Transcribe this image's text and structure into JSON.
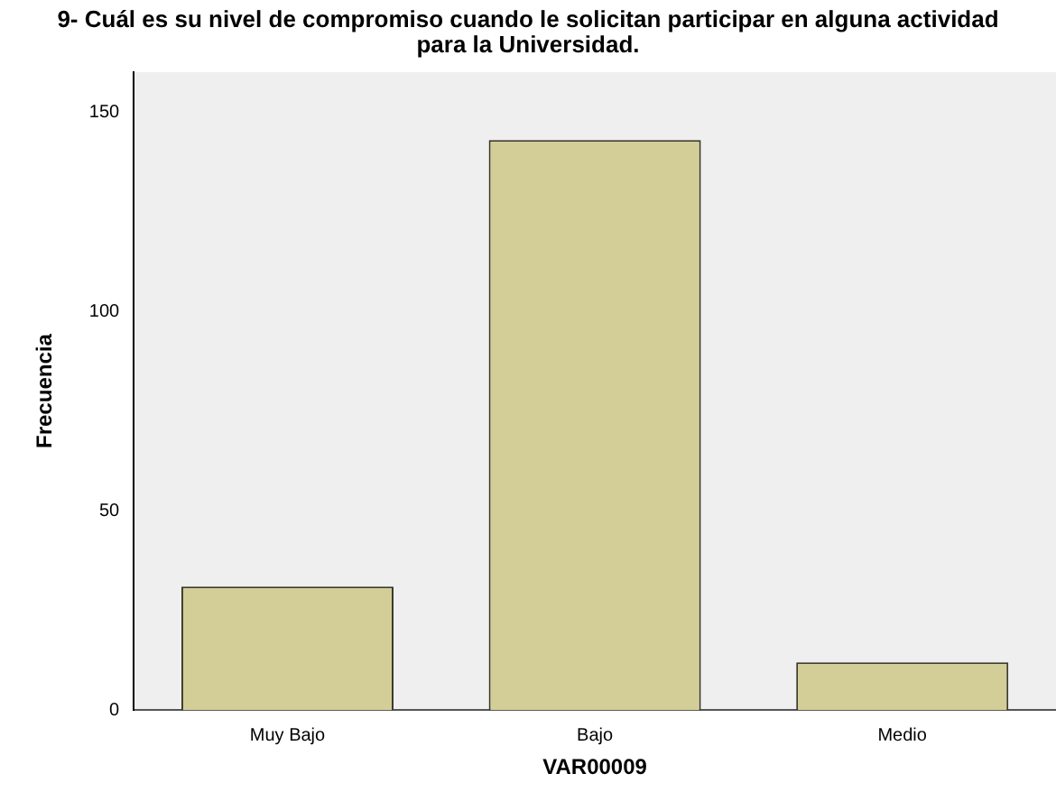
{
  "chart_data": {
    "type": "bar",
    "title": "9- Cuál es su nivel de compromiso cuando le solicitan participar en alguna actividad para la Universidad.",
    "xlabel": "VAR00009",
    "ylabel": "Frecuencia",
    "categories": [
      "Muy Bajo",
      "Bajo",
      "Medio"
    ],
    "values": [
      31,
      143,
      12
    ],
    "color": "#d3ce97",
    "ylim": [
      0,
      160
    ],
    "yticks": [
      0,
      50,
      100,
      150
    ],
    "grid": false,
    "legend": false
  }
}
